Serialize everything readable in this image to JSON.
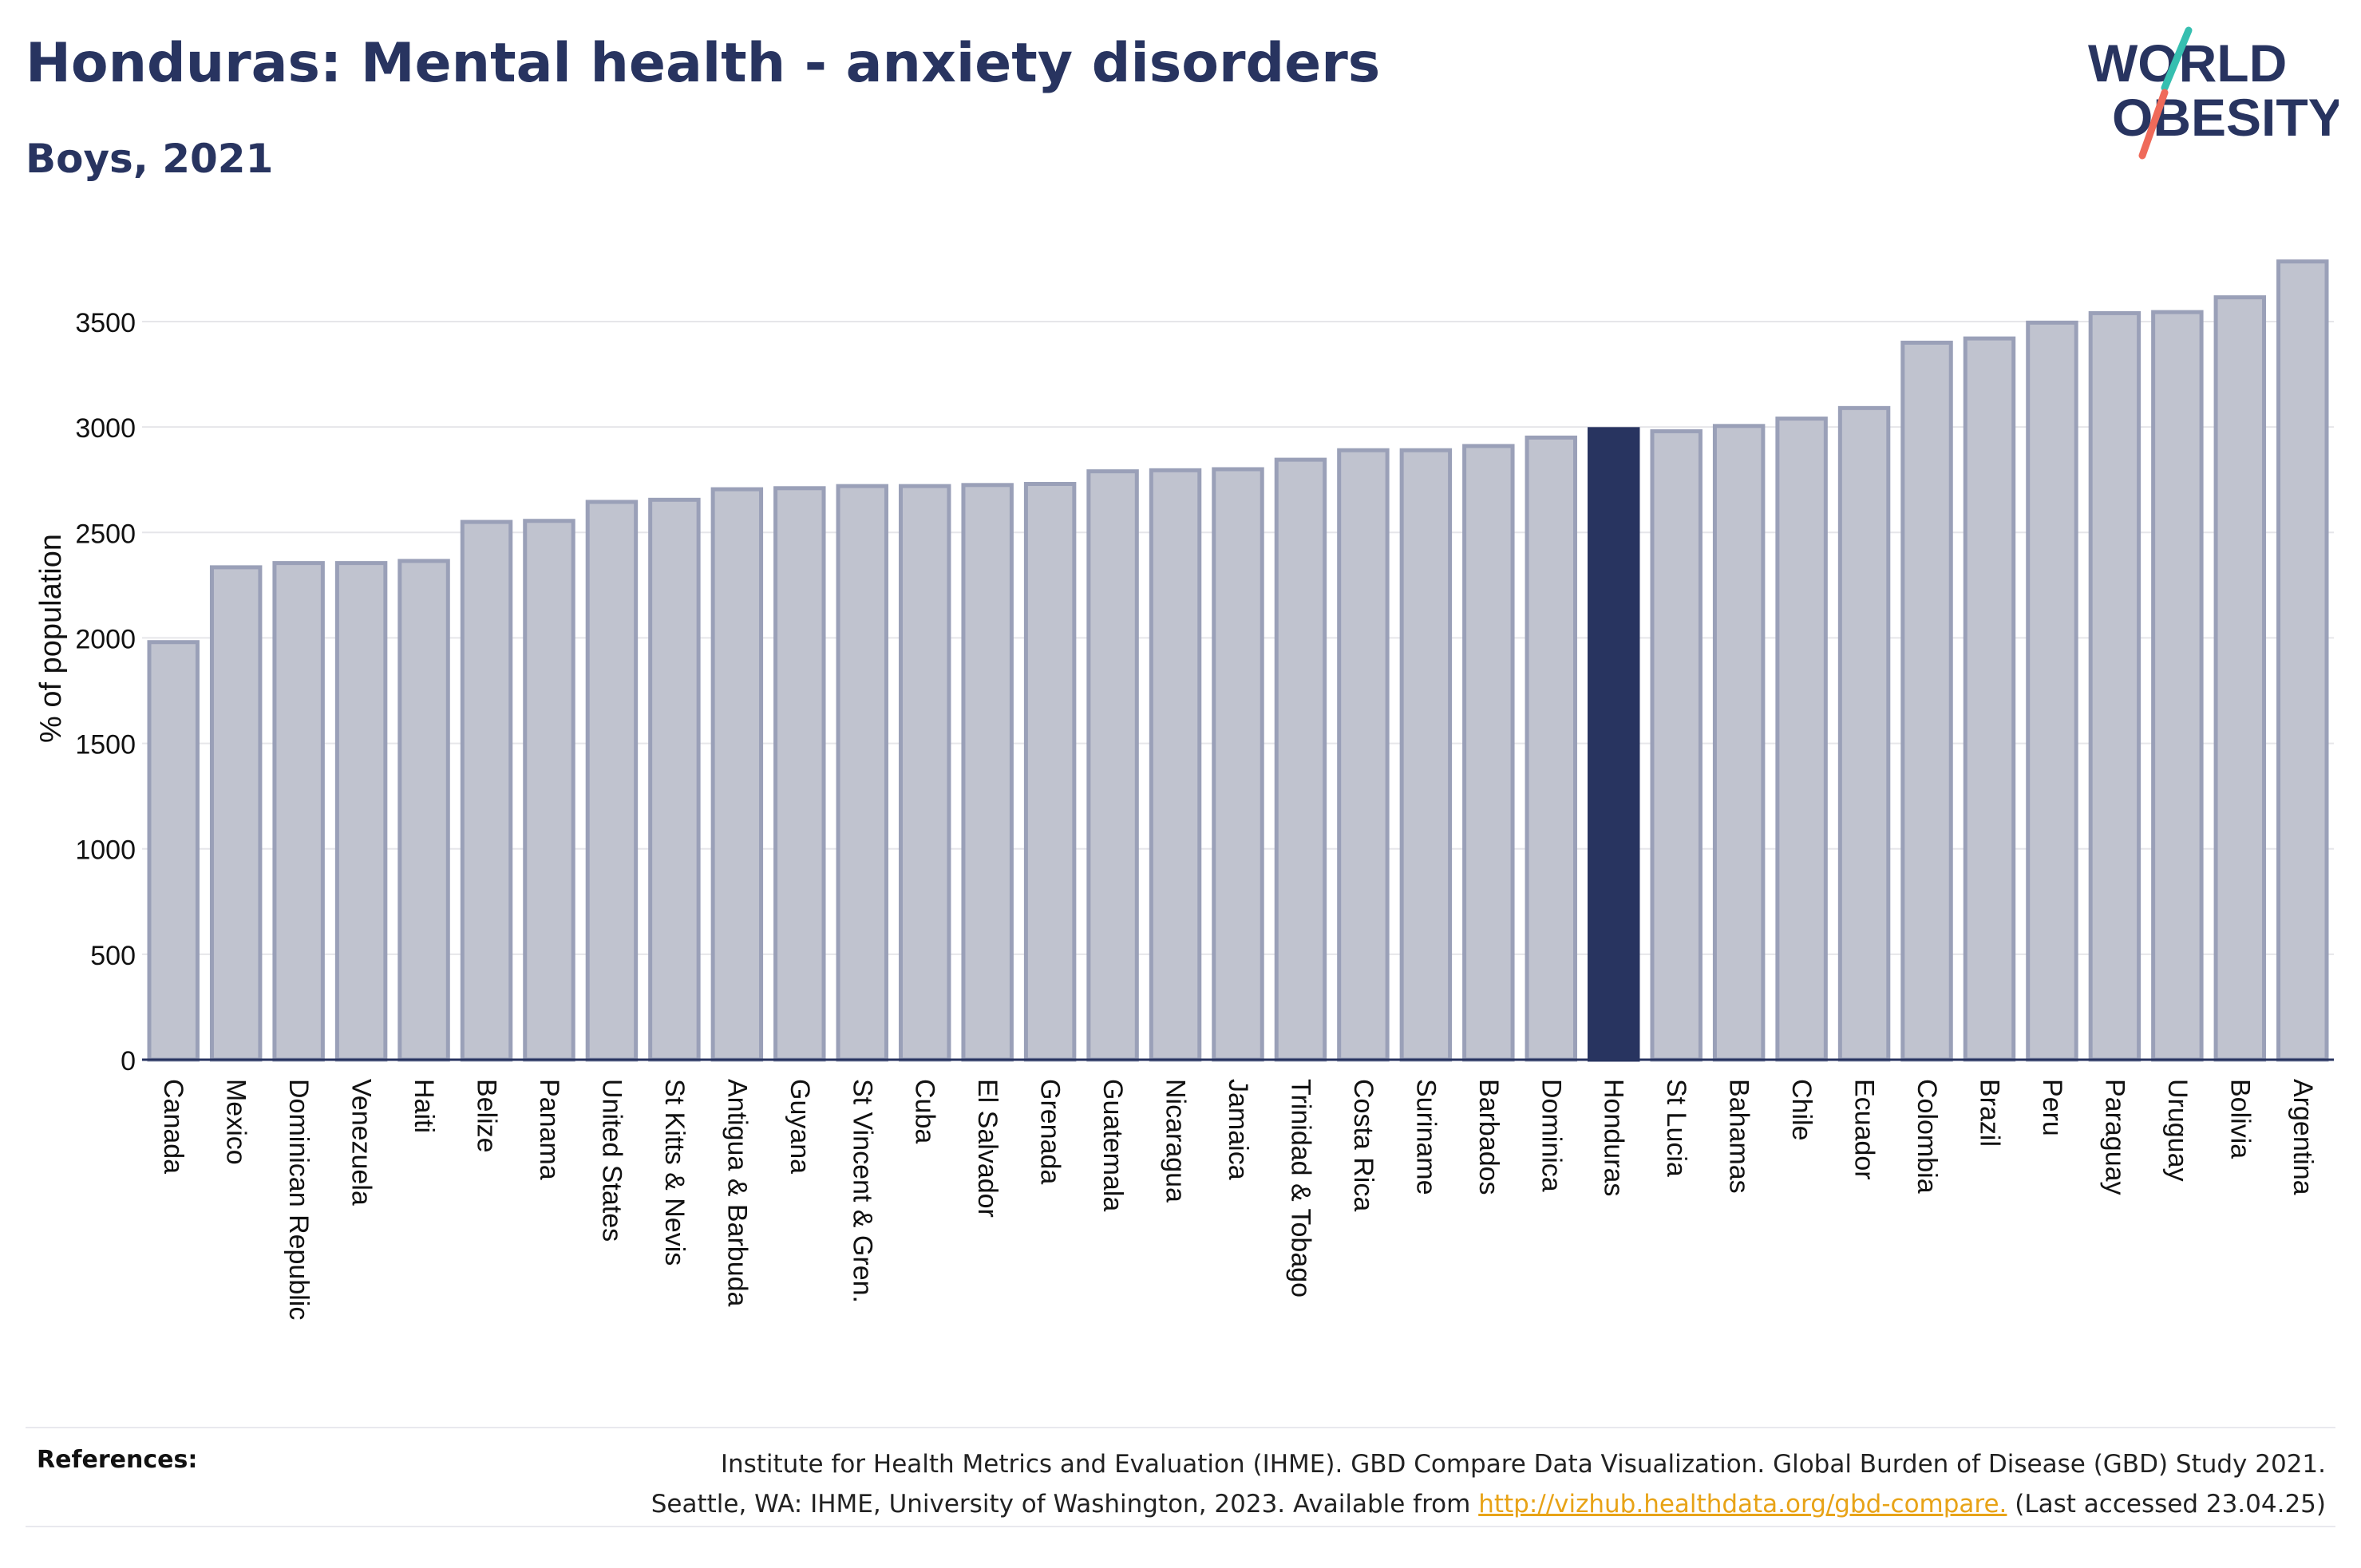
{
  "header": {
    "title": "Honduras: Mental health - anxiety disorders",
    "subtitle": "Boys, 2021"
  },
  "logo": {
    "line1": "WORLD",
    "line2": "OBESITY"
  },
  "colors": {
    "bar_fill": "#c0c3cf",
    "bar_stroke": "#9aa0b8",
    "highlight": "#283460",
    "axis_text": "#111111",
    "grid": "#e6e6ea",
    "link": "#e8a317",
    "logo_teal": "#36bfb0",
    "logo_coral": "#ef6a5a"
  },
  "chart_data": {
    "type": "bar",
    "ylabel": "% of population",
    "ylim": [
      0,
      3800
    ],
    "yticks": [
      0,
      500,
      1000,
      1500,
      2000,
      2500,
      3000,
      3500
    ],
    "grid": true,
    "highlight": "Honduras",
    "categories": [
      "Canada",
      "Mexico",
      "Dominican Republic",
      "Venezuela",
      "Haiti",
      "Belize",
      "Panama",
      "United States",
      "St Kitts & Nevis",
      "Antigua & Barbuda",
      "Guyana",
      "St Vincent & Gren.",
      "Cuba",
      "El Salvador",
      "Grenada",
      "Guatemala",
      "Nicaragua",
      "Jamaica",
      "Trinidad & Tobago",
      "Costa Rica",
      "Suriname",
      "Barbados",
      "Dominica",
      "Honduras",
      "St Lucia",
      "Bahamas",
      "Chile",
      "Ecuador",
      "Colombia",
      "Brazil",
      "Peru",
      "Paraguay",
      "Uruguay",
      "Bolivia",
      "Argentina"
    ],
    "values": [
      1980,
      2335,
      2355,
      2355,
      2365,
      2550,
      2555,
      2645,
      2655,
      2705,
      2710,
      2720,
      2720,
      2725,
      2730,
      2790,
      2795,
      2800,
      2845,
      2890,
      2890,
      2910,
      2950,
      2990,
      2980,
      3005,
      3040,
      3090,
      3400,
      3420,
      3495,
      3540,
      3545,
      3615,
      3785
    ]
  },
  "references": {
    "label": "References:",
    "line1": "Institute for Health Metrics and Evaluation (IHME). GBD Compare Data Visualization. Global Burden of Disease (GBD) Study 2021.",
    "line2_prefix": "Seattle, WA: IHME, University of Washington, 2023. Available from",
    "link": "http://vizhub.healthdata.org/gbd-compare.",
    "line2_suffix": "(Last accessed 23.04.25)"
  }
}
